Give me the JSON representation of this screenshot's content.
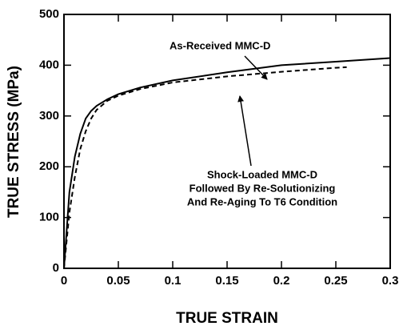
{
  "chart_data": {
    "type": "line",
    "xlabel": "TRUE STRAIN",
    "ylabel": "TRUE STRESS (MPa)",
    "xlim": [
      0,
      0.3
    ],
    "ylim": [
      0,
      500
    ],
    "xticks": [
      0,
      0.05,
      0.1,
      0.15,
      0.2,
      0.25,
      0.3
    ],
    "yticks": [
      0,
      100,
      200,
      300,
      400,
      500
    ],
    "grid": false,
    "series": [
      {
        "name": "As-Received  MMC-D",
        "color": "#000000",
        "dash": "solid",
        "x": [
          0,
          0.005,
          0.01,
          0.015,
          0.02,
          0.025,
          0.03,
          0.04,
          0.05,
          0.07,
          0.1,
          0.15,
          0.2,
          0.25,
          0.3
        ],
        "values": [
          0,
          150,
          220,
          265,
          295,
          310,
          320,
          333,
          343,
          356,
          370,
          386,
          400,
          407,
          414
        ]
      },
      {
        "name": "Shock-Loaded MMC-D",
        "color": "#000000",
        "dash": "dashed",
        "x": [
          0,
          0.005,
          0.01,
          0.015,
          0.02,
          0.025,
          0.03,
          0.04,
          0.05,
          0.07,
          0.1,
          0.15,
          0.2,
          0.25,
          0.26
        ],
        "values": [
          0,
          110,
          180,
          235,
          270,
          295,
          312,
          330,
          340,
          353,
          366,
          378,
          387,
          395,
          396
        ]
      }
    ],
    "annotations": [
      "Followed  By  Re-Solutionizing",
      "And  Re-Aging  To  T6  Condition"
    ]
  }
}
